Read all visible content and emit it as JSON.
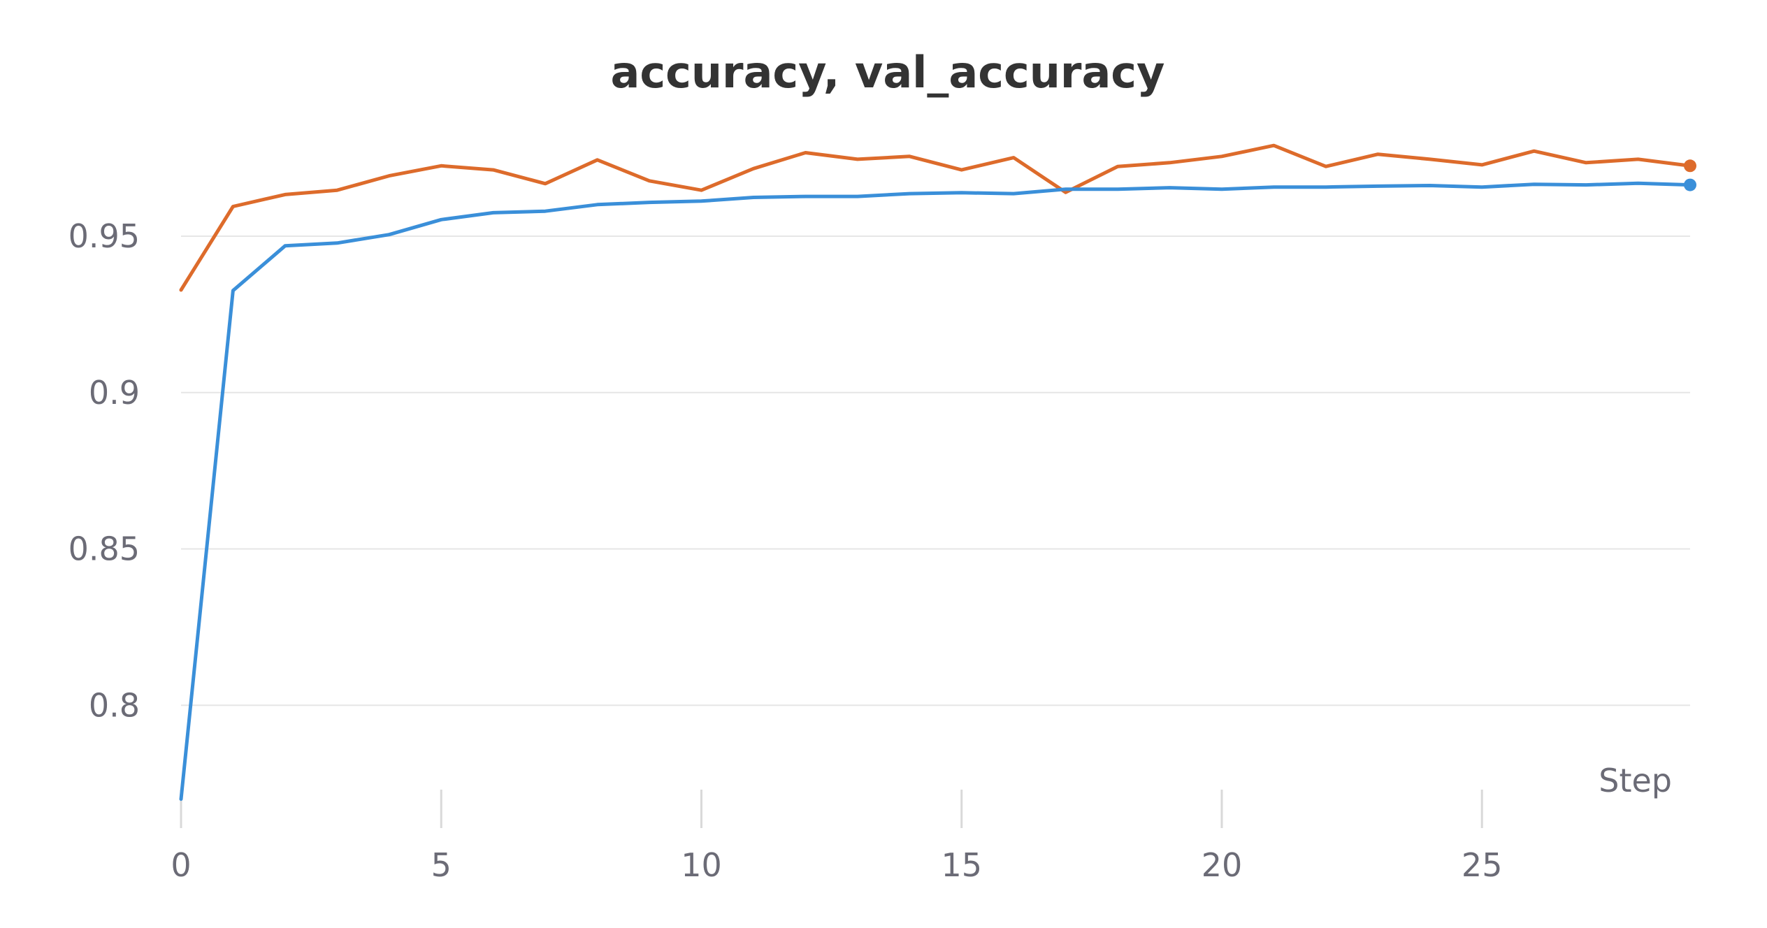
{
  "chart_data": {
    "type": "line",
    "title": "accuracy, val_accuracy",
    "xlabel": "Step",
    "ylabel": "",
    "xlim": [
      0,
      29
    ],
    "ylim": [
      0.767,
      0.992
    ],
    "x_ticks": [
      0,
      5,
      10,
      15,
      20,
      25
    ],
    "x_tick_labels": [
      "0",
      "5",
      "10",
      "15",
      "20",
      "25"
    ],
    "y_ticks": [
      0.8,
      0.85,
      0.9,
      0.95
    ],
    "y_tick_labels": [
      "0.8",
      "0.85",
      "0.9",
      "0.95"
    ],
    "grid": true,
    "x": [
      0,
      1,
      2,
      3,
      4,
      5,
      6,
      7,
      8,
      9,
      10,
      11,
      12,
      13,
      14,
      15,
      16,
      17,
      18,
      19,
      20,
      21,
      22,
      23,
      24,
      25,
      26,
      27,
      28,
      29
    ],
    "series": [
      {
        "color": "#dd6b2b",
        "values": [
          0.9328,
          0.9595,
          0.9633,
          0.9647,
          0.9693,
          0.9725,
          0.9712,
          0.9668,
          0.9744,
          0.9677,
          0.9647,
          0.9716,
          0.9767,
          0.9746,
          0.9755,
          0.9712,
          0.9751,
          0.964,
          0.9723,
          0.9735,
          0.9755,
          0.979,
          0.9723,
          0.9762,
          0.9746,
          0.9728,
          0.9772,
          0.9735,
          0.9746,
          0.9725
        ]
      },
      {
        "color": "#3a8fd9",
        "values": [
          0.77,
          0.9326,
          0.9469,
          0.9478,
          0.9505,
          0.9553,
          0.9575,
          0.958,
          0.9601,
          0.9608,
          0.9612,
          0.9624,
          0.9627,
          0.9627,
          0.9636,
          0.9639,
          0.9636,
          0.965,
          0.965,
          0.9655,
          0.965,
          0.9657,
          0.9657,
          0.966,
          0.9662,
          0.9657,
          0.9666,
          0.9664,
          0.9669,
          0.9664
        ]
      }
    ]
  }
}
